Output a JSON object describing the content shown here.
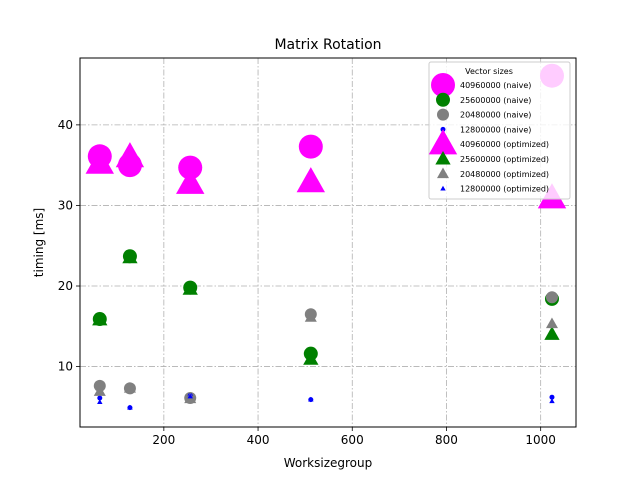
{
  "chart_data": {
    "type": "scatter",
    "title": "Matrix Rotation",
    "xlabel": "Worksizegroup",
    "ylabel": "timing [ms]",
    "xlim": [
      22,
      1075
    ],
    "ylim": [
      2.5,
      48.3
    ],
    "xticks": [
      200,
      400,
      600,
      800,
      1000
    ],
    "yticks": [
      10,
      20,
      30,
      40
    ],
    "grid": true,
    "legend_title": "Vector sizes",
    "legend_position": "top-right",
    "series": [
      {
        "name": "40960000 (naive)",
        "marker": "circle",
        "color": "#ff00ff",
        "size": 24,
        "points": [
          [
            64,
            36.1
          ],
          [
            128,
            35.0
          ],
          [
            256,
            34.7
          ],
          [
            512,
            37.3
          ],
          [
            1024,
            46.1
          ]
        ]
      },
      {
        "name": "25600000 (naive)",
        "marker": "circle",
        "color": "#008000",
        "size": 14,
        "points": [
          [
            64,
            15.9
          ],
          [
            128,
            23.7
          ],
          [
            256,
            19.8
          ],
          [
            512,
            11.6
          ],
          [
            1024,
            18.4
          ]
        ]
      },
      {
        "name": "20480000 (naive)",
        "marker": "circle",
        "color": "#808080",
        "size": 12,
        "points": [
          [
            64,
            7.6
          ],
          [
            128,
            7.3
          ],
          [
            256,
            6.1
          ],
          [
            512,
            16.5
          ],
          [
            1024,
            18.6
          ]
        ]
      },
      {
        "name": "12800000 (naive)",
        "marker": "circle",
        "color": "#0000ff",
        "size": 5,
        "points": [
          [
            64,
            6.1
          ],
          [
            128,
            4.9
          ],
          [
            256,
            6.4
          ],
          [
            512,
            5.9
          ],
          [
            1024,
            6.2
          ]
        ]
      },
      {
        "name": "40960000 (optimized)",
        "marker": "triangle",
        "color": "#ff00ff",
        "size": 26,
        "points": [
          [
            64,
            35.2
          ],
          [
            128,
            36.0
          ],
          [
            256,
            32.7
          ],
          [
            512,
            32.9
          ],
          [
            1024,
            30.9
          ]
        ]
      },
      {
        "name": "25600000 (optimized)",
        "marker": "triangle",
        "color": "#008000",
        "size": 14,
        "points": [
          [
            64,
            15.8
          ],
          [
            128,
            23.5
          ],
          [
            256,
            19.6
          ],
          [
            512,
            10.9
          ],
          [
            1024,
            14.0
          ]
        ]
      },
      {
        "name": "20480000 (optimized)",
        "marker": "triangle",
        "color": "#808080",
        "size": 11,
        "points": [
          [
            64,
            6.9
          ],
          [
            128,
            7.3
          ],
          [
            256,
            6.0
          ],
          [
            512,
            16.1
          ],
          [
            1024,
            15.3
          ]
        ]
      },
      {
        "name": "12800000 (optimized)",
        "marker": "triangle",
        "color": "#0000ff",
        "size": 5,
        "points": [
          [
            64,
            5.6
          ],
          [
            128,
            4.9
          ],
          [
            256,
            6.3
          ],
          [
            512,
            5.9
          ],
          [
            1024,
            5.7
          ]
        ]
      }
    ]
  }
}
